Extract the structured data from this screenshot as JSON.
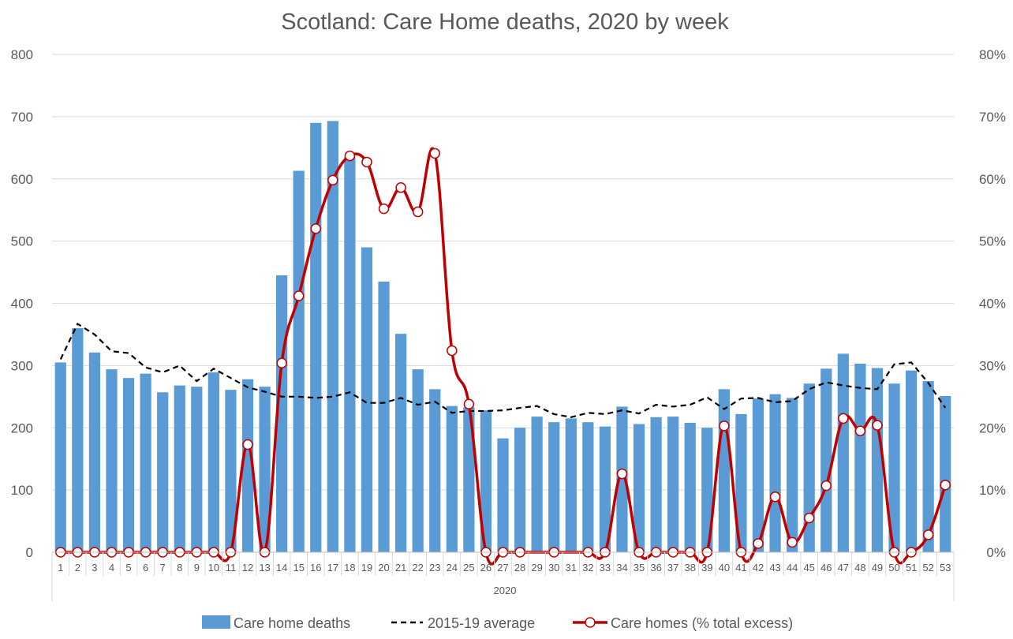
{
  "chart_data": {
    "type": "bar",
    "title": "Scotland: Care Home deaths, 2020 by week",
    "x_group_label": "2020",
    "categories": [
      "1",
      "2",
      "3",
      "4",
      "5",
      "6",
      "7",
      "8",
      "9",
      "10",
      "11",
      "12",
      "13",
      "14",
      "15",
      "16",
      "17",
      "18",
      "19",
      "20",
      "21",
      "22",
      "23",
      "24",
      "25",
      "26",
      "27",
      "28",
      "29",
      "30",
      "31",
      "32",
      "33",
      "34",
      "35",
      "36",
      "37",
      "38",
      "39",
      "40",
      "41",
      "42",
      "43",
      "44",
      "45",
      "46",
      "47",
      "48",
      "49",
      "50",
      "51",
      "52",
      "53"
    ],
    "ylim": [
      0,
      800
    ],
    "y_ticks": [
      "0",
      "100",
      "200",
      "300",
      "400",
      "500",
      "600",
      "700",
      "800"
    ],
    "y2lim": [
      0,
      0.8
    ],
    "y2_ticks": [
      "0%",
      "10%",
      "20%",
      "30%",
      "40%",
      "50%",
      "60%",
      "70%",
      "80%"
    ],
    "grid": true,
    "legend_position": "bottom",
    "series": [
      {
        "name": "Care home deaths",
        "type": "bar",
        "axis": "left",
        "color": "#5b9bd5",
        "values": [
          305,
          360,
          321,
          294,
          280,
          287,
          257,
          268,
          266,
          289,
          261,
          278,
          266,
          445,
          613,
          690,
          693,
          635,
          490,
          435,
          351,
          294,
          262,
          235,
          233,
          228,
          183,
          200,
          218,
          209,
          215,
          209,
          202,
          234,
          206,
          217,
          218,
          208,
          200,
          262,
          222,
          247,
          254,
          248,
          271,
          295,
          319,
          303,
          296,
          271,
          292,
          275,
          251
        ]
      },
      {
        "name": "2015-19 average",
        "type": "line",
        "axis": "left",
        "color": "#000000",
        "values": [
          310,
          367,
          350,
          323,
          320,
          297,
          289,
          300,
          275,
          295,
          280,
          265,
          258,
          250,
          250,
          248,
          250,
          257,
          240,
          240,
          248,
          237,
          242,
          224,
          227,
          227,
          228,
          232,
          235,
          222,
          217,
          224,
          222,
          228,
          223,
          237,
          234,
          237,
          249,
          230,
          247,
          248,
          241,
          243,
          262,
          273,
          268,
          264,
          262,
          302,
          305,
          272,
          232
        ]
      },
      {
        "name": "Care homes (% total excess)",
        "type": "line",
        "axis": "right",
        "color": "#c00000",
        "values": [
          0,
          0,
          0,
          0,
          0,
          0,
          0,
          0,
          0,
          0,
          0,
          0.173,
          0,
          0.304,
          0.412,
          0.52,
          0.598,
          0.637,
          0.627,
          0.552,
          0.586,
          0.547,
          0.641,
          0.324,
          0.238,
          0,
          0,
          0,
          null,
          0,
          null,
          0,
          0,
          0.126,
          0,
          0,
          0,
          0,
          0,
          0.203,
          0,
          0.014,
          0.089,
          0.016,
          0.055,
          0.107,
          0.215,
          0.195,
          0.204,
          0,
          0,
          0.028,
          0.108
        ]
      }
    ]
  }
}
